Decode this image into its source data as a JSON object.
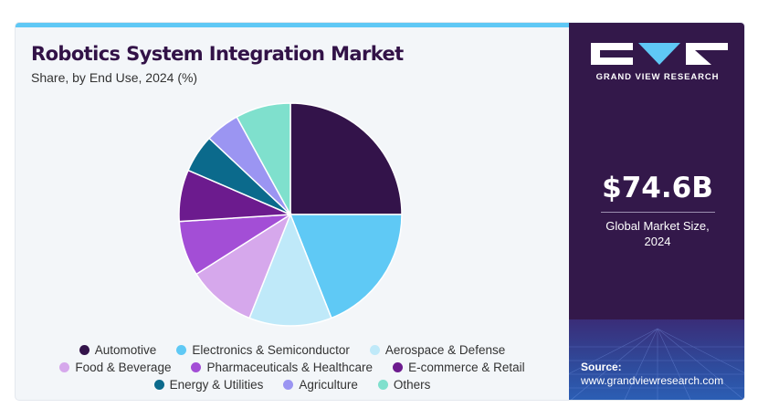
{
  "header": {
    "title": "Robotics System Integration Market",
    "subtitle": "Share, by End Use, 2024 (%)"
  },
  "brand": {
    "name": "GRAND VIEW RESEARCH",
    "logo_icon": "grand-view-research-logo"
  },
  "summary": {
    "value": "$74.6B",
    "label_line1": "Global Market Size,",
    "label_line2": "2024"
  },
  "source": {
    "label": "Source:",
    "url": "www.grandviewresearch.com"
  },
  "colors": {
    "primary": "#33184a",
    "accent": "#5fc8f5"
  },
  "chart_data": {
    "type": "pie",
    "title": "Robotics System Integration Market",
    "subtitle": "Share, by End Use, 2024 (%)",
    "legend_position": "bottom",
    "slices": [
      {
        "name": "Automotive",
        "value": 25,
        "color": "#33134a"
      },
      {
        "name": "Electronics & Semiconductor",
        "value": 19,
        "color": "#5fc9f5"
      },
      {
        "name": "Aerospace & Defense",
        "value": 12,
        "color": "#bfe9f9"
      },
      {
        "name": "Food & Beverage",
        "value": 10,
        "color": "#d6a8ec"
      },
      {
        "name": "Pharmaceuticals & Healthcare",
        "value": 8,
        "color": "#a34ed6"
      },
      {
        "name": "E-commerce & Retail",
        "value": 7.5,
        "color": "#6c1b8e"
      },
      {
        "name": "Energy & Utilities",
        "value": 5.5,
        "color": "#0b6a8c"
      },
      {
        "name": "Agriculture",
        "value": 5,
        "color": "#9b95f2"
      },
      {
        "name": "Others",
        "value": 8,
        "color": "#7fe0cd"
      }
    ]
  }
}
